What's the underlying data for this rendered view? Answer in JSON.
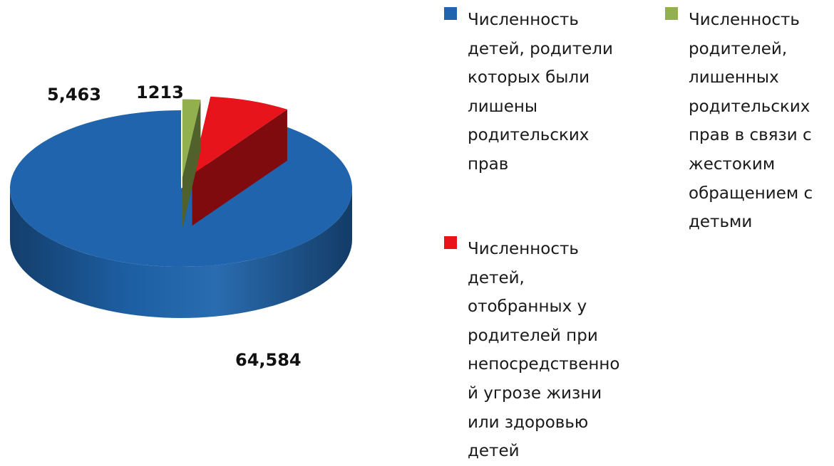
{
  "chart_data": {
    "type": "pie",
    "title": "",
    "series": [
      {
        "label_lines": [
          "Численность",
          "детей, родители",
          "которых были",
          "лишены",
          "родительских",
          "прав"
        ],
        "value": 64584,
        "data_label": "64,584",
        "color": "#1f64ac"
      },
      {
        "label_lines": [
          "Численность",
          "детей,",
          "отобранных у",
          "родителей при",
          "непосредственно",
          "й угрозе жизни",
          "или здоровью",
          "детей"
        ],
        "value": 5463,
        "data_label": "5,463",
        "color": "#e8141c"
      },
      {
        "label_lines": [
          "Численность",
          "родителей,",
          "лишенных",
          "родительских",
          "прав в связи с",
          "жестоким",
          "обращением с",
          "детьми"
        ],
        "value": 1213,
        "data_label": "1213",
        "color": "#93b04f"
      }
    ],
    "legend_position": "right"
  }
}
